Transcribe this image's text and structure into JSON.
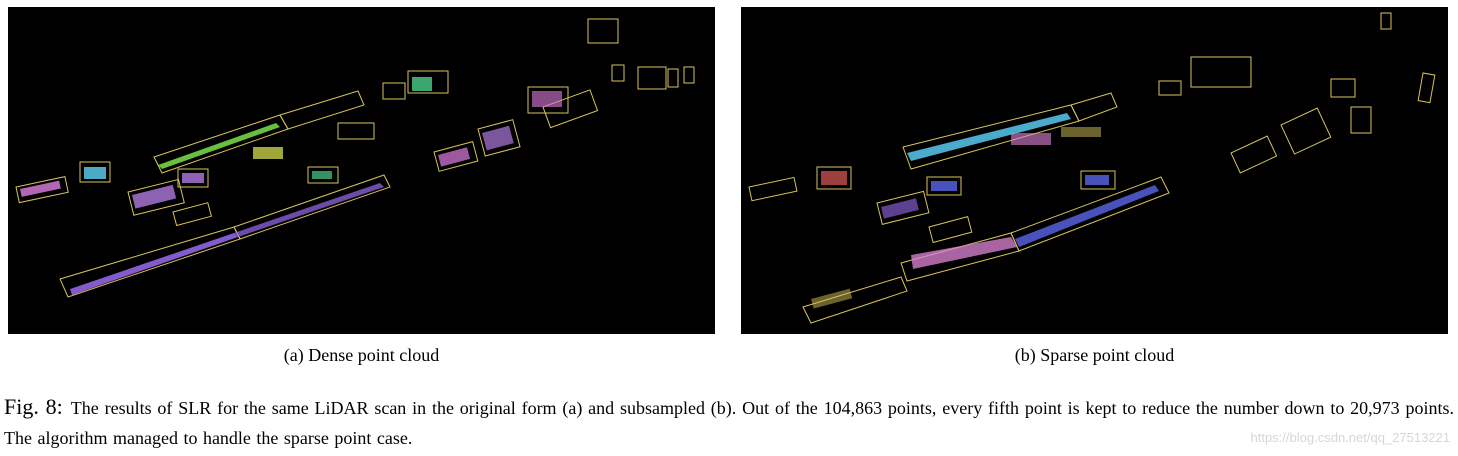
{
  "figure": {
    "panels": [
      {
        "id": "a",
        "caption": "(a) Dense point cloud"
      },
      {
        "id": "b",
        "caption": "(b) Sparse point cloud"
      }
    ],
    "label": "Fig. 8:",
    "caption": "The results of SLR for the same LiDAR scan in the original form (a) and subsampled (b). Out of the 104,863 points, every fifth point is kept to reduce the number down to 20,973 points. The algorithm managed to handle the sparse point case.",
    "watermark": "https://blog.csdn.net/qq_27513221"
  },
  "colors": {
    "box": "#d8c45a",
    "background": "#000000",
    "clusters_a": [
      "#9b6bf0",
      "#7be04a",
      "#e07fe0",
      "#59c9e6",
      "#c9d04a",
      "#b07ae0",
      "#4ad08a"
    ],
    "clusters_b": [
      "#57c9ef",
      "#e087d8",
      "#5b66e8",
      "#d8c45a",
      "#e05a5a",
      "#9b6bf0"
    ]
  }
}
